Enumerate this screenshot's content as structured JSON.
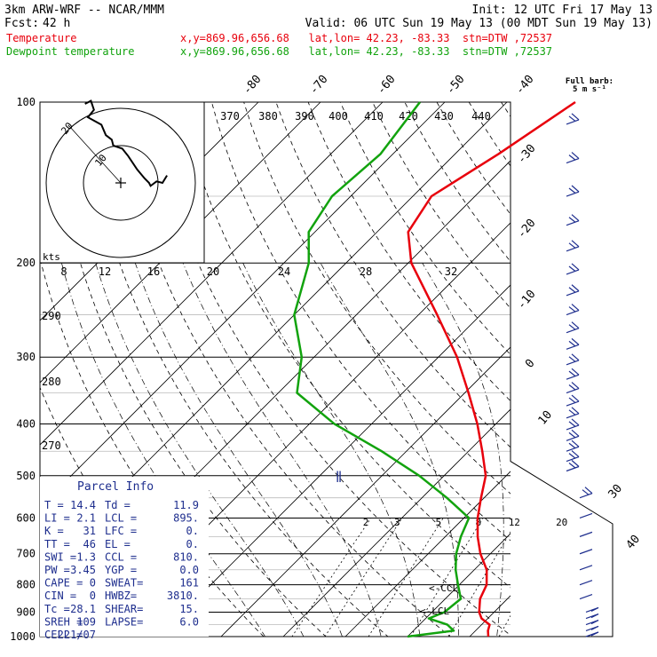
{
  "header": {
    "model": "3km ARW-WRF -- NCAR/MMM",
    "init": "Init: 12 UTC Fri 17 May 13",
    "fcst_label": "Fcst:",
    "fcst_value": "42 h",
    "valid": "Valid: 06 UTC Sun 19 May 13 (00 MDT Sun 19 May 13)"
  },
  "legend": [
    {
      "name": "Temperature",
      "info": "x,y=869.96,656.68   lat,lon= 42.23, -83.33  stn=DTW ,72537",
      "color": "#e8000c"
    },
    {
      "name": "Dewpoint temperature",
      "info": "x,y=869.96,656.68   lat,lon= 42.23, -83.33  stn=DTW ,72537",
      "color": "#12a30e"
    }
  ],
  "barb_key": {
    "title": "Full barb:",
    "value": "5 m s⁻¹"
  },
  "hodograph": {
    "units": "kts",
    "ring_labels": [
      "20",
      "10"
    ],
    "speed_labels": [
      "8",
      "12",
      "16",
      "20",
      "24",
      "28",
      "32"
    ]
  },
  "parcel_info": {
    "title": "Parcel Info",
    "rows": [
      [
        "T  =",
        "14.4",
        "Td =",
        "11.9"
      ],
      [
        "LI =",
        "2.1",
        "LCL =",
        "895."
      ],
      [
        "K  =",
        "31",
        "LFC =",
        "0."
      ],
      [
        "TT =",
        "46",
        "EL  =",
        "0."
      ],
      [
        "SWI =",
        "1.3",
        "CCL =",
        "810."
      ],
      [
        "PW =",
        "3.45",
        "YGP =",
        "0.0"
      ],
      [
        "CAPE =",
        "0",
        "SWEAT=",
        "161"
      ],
      [
        "CIN =",
        "0",
        "HWBZ=",
        "3810."
      ],
      [
        "Tc =",
        "28.1",
        "SHEAR=",
        "15."
      ],
      [
        "SREH =",
        "109",
        "LAPSE=",
        "6.0"
      ],
      [
        "CELL =",
        "221/07",
        "",
        ""
      ]
    ]
  },
  "level_markers": {
    "ccl": "<-CCL",
    "lcl": "<-LCL"
  },
  "chart_data": {
    "type": "line",
    "title": "",
    "pressure_axis": {
      "label_values": [
        100,
        200,
        300,
        400,
        500,
        600,
        700,
        800,
        900,
        1000
      ],
      "scale": "log"
    },
    "isotherm_labels": [
      -80,
      -70,
      -60,
      -50,
      -40,
      -30,
      -20,
      -10,
      0,
      10,
      30,
      40
    ],
    "theta_labels_top": [
      370,
      380,
      390,
      400,
      410,
      420,
      430,
      440
    ],
    "theta_labels_left": [
      290,
      280,
      270
    ],
    "mixing_ratio_labels": [
      2,
      3,
      5,
      8,
      12,
      20
    ],
    "series": [
      {
        "name": "Temperature",
        "color": "#e8000c",
        "points": [
          [
            1000,
            23.0
          ],
          [
            975,
            22.0
          ],
          [
            950,
            21.3
          ],
          [
            925,
            19.0
          ],
          [
            900,
            17.6
          ],
          [
            850,
            15.6
          ],
          [
            800,
            14.4
          ],
          [
            750,
            12.0
          ],
          [
            700,
            8.4
          ],
          [
            650,
            5.2
          ],
          [
            600,
            2.2
          ],
          [
            550,
            -0.5
          ],
          [
            500,
            -3.3
          ],
          [
            450,
            -7.8
          ],
          [
            400,
            -13.0
          ],
          [
            350,
            -19.4
          ],
          [
            300,
            -27.0
          ],
          [
            250,
            -37.0
          ],
          [
            200,
            -49.5
          ],
          [
            175,
            -55.0
          ],
          [
            150,
            -57.0
          ],
          [
            125,
            -53.0
          ],
          [
            100,
            -49.0
          ]
        ]
      },
      {
        "name": "Dewpoint temperature",
        "color": "#12a30e",
        "points": [
          [
            1000,
            10.0
          ],
          [
            975,
            16.5
          ],
          [
            950,
            14.5
          ],
          [
            925,
            10.5
          ],
          [
            900,
            12.0
          ],
          [
            850,
            12.5
          ],
          [
            800,
            9.8
          ],
          [
            750,
            7.0
          ],
          [
            700,
            4.5
          ],
          [
            650,
            2.5
          ],
          [
            600,
            0.8
          ],
          [
            550,
            -6.0
          ],
          [
            500,
            -14.0
          ],
          [
            450,
            -24.0
          ],
          [
            400,
            -36.0
          ],
          [
            350,
            -47.0
          ],
          [
            300,
            -52.0
          ],
          [
            250,
            -60.0
          ],
          [
            200,
            -66.0
          ],
          [
            175,
            -71.0
          ],
          [
            150,
            -73.0
          ],
          [
            125,
            -72.0
          ],
          [
            100,
            -74.0
          ]
        ]
      }
    ],
    "hodograph_trace": [
      [
        -0.48,
        1.06
      ],
      [
        -0.4,
        1.1
      ],
      [
        -0.36,
        0.98
      ],
      [
        -0.44,
        0.88
      ],
      [
        -0.26,
        0.78
      ],
      [
        -0.2,
        0.64
      ],
      [
        -0.12,
        0.58
      ],
      [
        -0.1,
        0.5
      ],
      [
        0.02,
        0.46
      ],
      [
        0.1,
        0.36
      ],
      [
        0.22,
        0.18
      ],
      [
        0.32,
        0.06
      ],
      [
        0.38,
        0.0
      ],
      [
        0.4,
        -0.04
      ],
      [
        0.48,
        0.02
      ],
      [
        0.56,
        0.0
      ],
      [
        0.62,
        0.1
      ]
    ],
    "wind_barbs_pressure": [
      110,
      130,
      150,
      170,
      190,
      210,
      230,
      250,
      270,
      290,
      310,
      330,
      350,
      370,
      390,
      410,
      430,
      450,
      470,
      490,
      550,
      600,
      650,
      700,
      750,
      800,
      850,
      900,
      925,
      950,
      975,
      1000
    ]
  }
}
